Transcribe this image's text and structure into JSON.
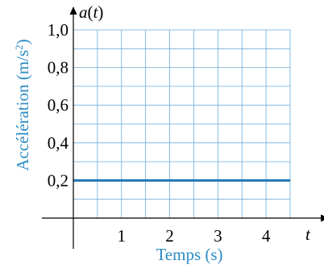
{
  "chart_data": {
    "type": "line",
    "xlabel": "Temps (s)",
    "ylabel_main": "Accélération (m/s",
    "ylabel_sup": "2",
    "ylabel_close": ")",
    "x_axis_name": "t",
    "y_axis_name_var": "a",
    "y_axis_name_open": "(",
    "y_axis_name_arg": "t",
    "y_axis_name_close": ")",
    "x_ticks": [
      "1",
      "2",
      "3",
      "4"
    ],
    "y_ticks": [
      "0,2",
      "0,4",
      "0,6",
      "0,8",
      "1,0"
    ],
    "xlim": [
      0,
      4.5
    ],
    "ylim": [
      0,
      1.0
    ],
    "grid": true,
    "series": [
      {
        "x": [
          0,
          4.5
        ],
        "y": [
          0.2,
          0.2
        ]
      }
    ],
    "colors": {
      "line": "#1f77b4",
      "grid": "#6aaee0",
      "label": "#2b8cc4",
      "axis": "#000000"
    }
  }
}
